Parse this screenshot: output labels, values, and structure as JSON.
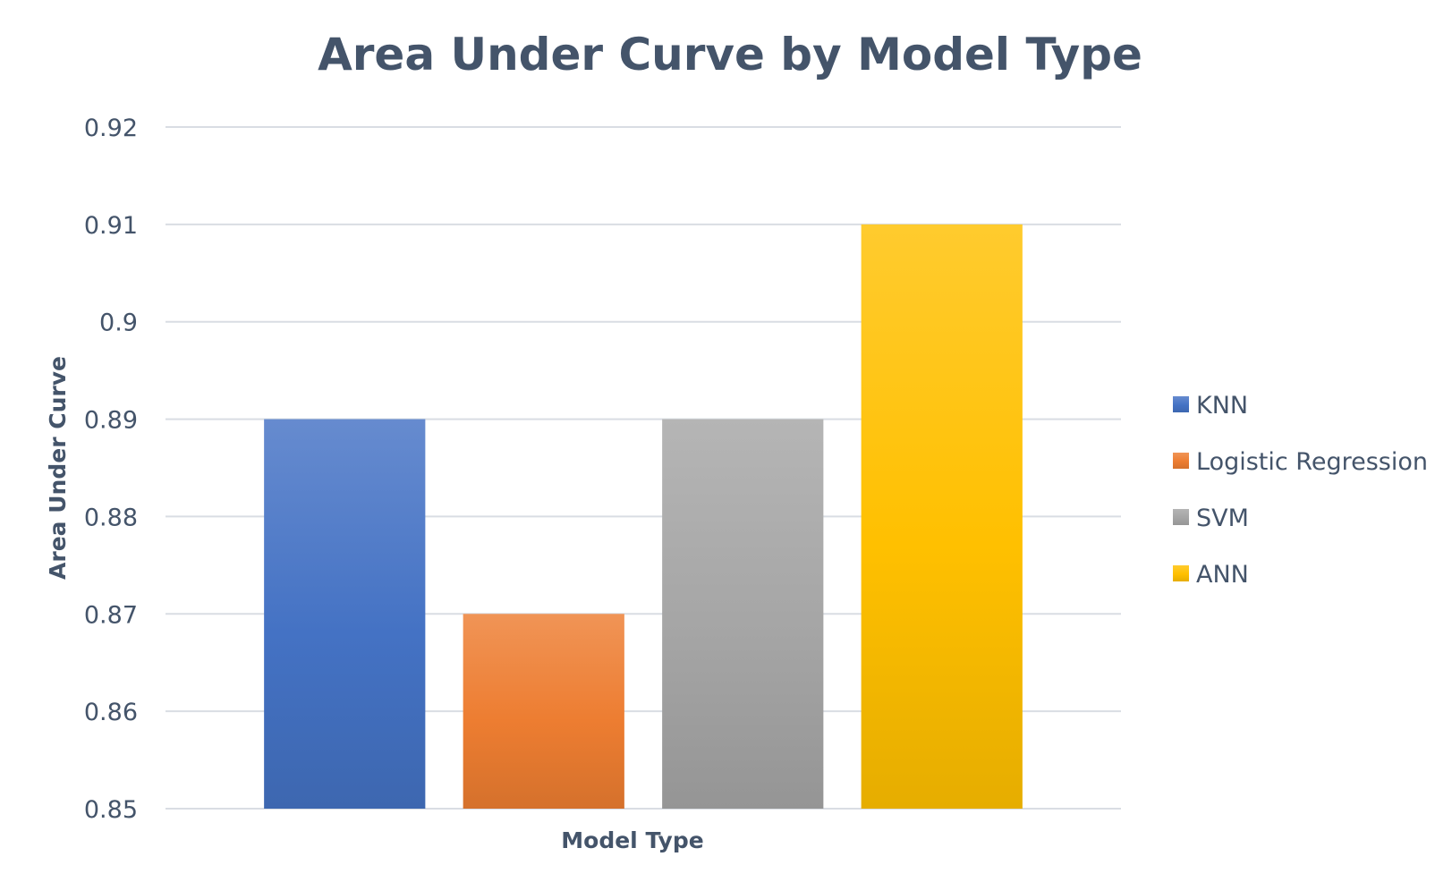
{
  "chart_data": {
    "type": "bar",
    "title": "Area Under Curve by Model Type",
    "xlabel": "Model Type",
    "ylabel": "Area Under Curve",
    "ylim": [
      0.85,
      0.92
    ],
    "yticks": [
      "0.85",
      "0.86",
      "0.87",
      "0.88",
      "0.89",
      "0.9",
      "0.91",
      "0.92"
    ],
    "grid": true,
    "legend_position": "right",
    "categories": [
      ""
    ],
    "series": [
      {
        "name": "KNN",
        "values": [
          0.89
        ],
        "color": "#4472c4"
      },
      {
        "name": "Logistic Regression",
        "values": [
          0.87
        ],
        "color": "#ed7d31"
      },
      {
        "name": "SVM",
        "values": [
          0.89
        ],
        "color": "#a5a5a5"
      },
      {
        "name": "ANN",
        "values": [
          0.91
        ],
        "color": "#ffc000"
      }
    ]
  }
}
